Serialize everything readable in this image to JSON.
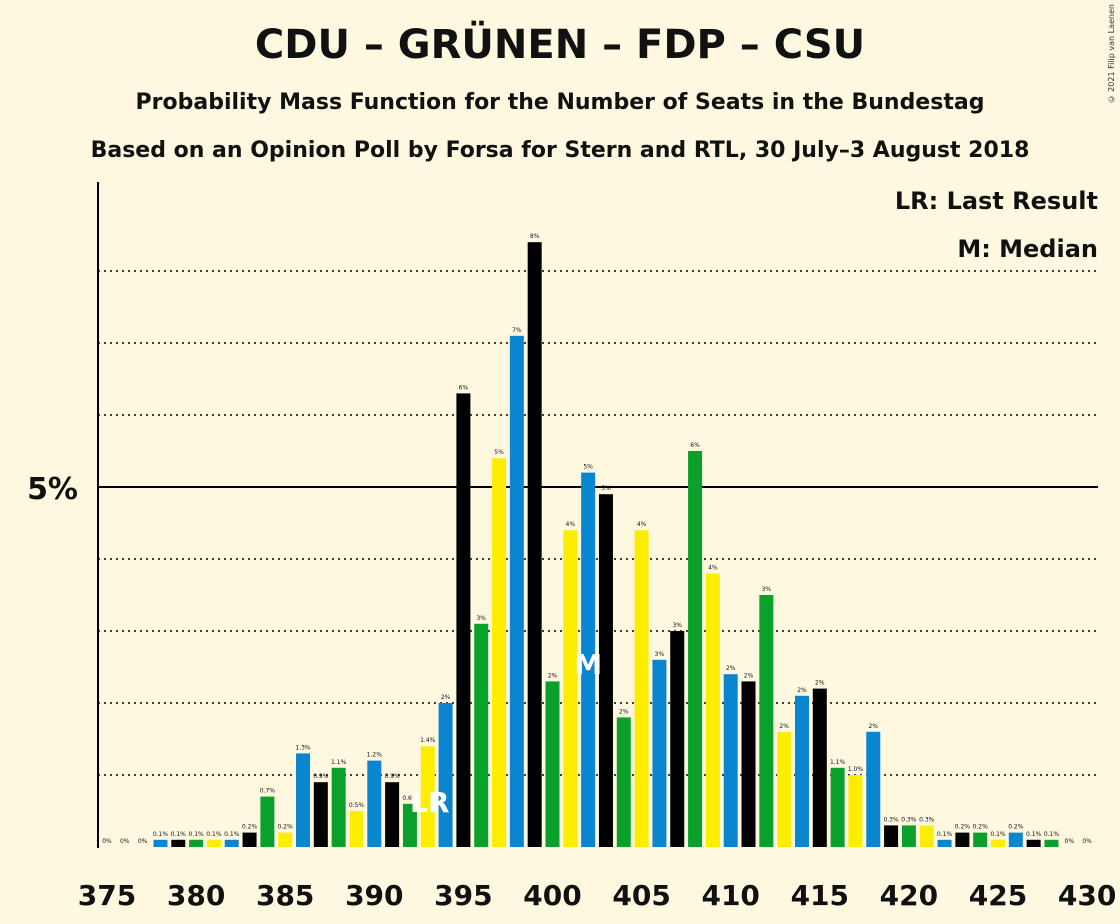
{
  "title": "CDU – GRÜNEN – FDP – CSU",
  "subtitle": "Probability Mass Function for the Number of Seats in the Bundestag",
  "subtitle2": "Based on an Opinion Poll by Forsa for Stern and RTL, 30 July–3 August 2018",
  "copyright": "© 2021 Filip van Laenen",
  "legend": {
    "lr": "LR: Last Result",
    "m": "M: Median"
  },
  "chart_data": {
    "type": "bar",
    "x": [
      375,
      376,
      377,
      378,
      379,
      380,
      381,
      382,
      383,
      384,
      385,
      386,
      387,
      388,
      389,
      390,
      391,
      392,
      393,
      394,
      395,
      396,
      397,
      398,
      399,
      400,
      401,
      402,
      403,
      404,
      405,
      406,
      407,
      408,
      409,
      410,
      411,
      412,
      413,
      414,
      415,
      416,
      417,
      418,
      419,
      420,
      421,
      422,
      423,
      424,
      425,
      426,
      427,
      428,
      429,
      430
    ],
    "values": [
      0.0,
      0.0,
      0.0,
      0.1,
      0.1,
      0.1,
      0.1,
      0.1,
      0.2,
      0.7,
      0.2,
      1.3,
      0.9,
      1.1,
      0.5,
      1.2,
      0.9,
      0.6,
      1.4,
      2.0,
      6.3,
      3.1,
      5.4,
      7.1,
      8.4,
      2.3,
      4.4,
      5.2,
      4.9,
      1.8,
      4.4,
      2.6,
      3.0,
      5.5,
      3.8,
      2.4,
      2.3,
      3.5,
      1.6,
      2.1,
      2.2,
      1.1,
      1.0,
      1.6,
      0.3,
      0.3,
      0.3,
      0.1,
      0.2,
      0.2,
      0.1,
      0.2,
      0.1,
      0.1,
      0.0,
      0.0
    ],
    "labels": [
      "0%",
      "0%",
      "0%",
      "0.1%",
      "0.1%",
      "0.1%",
      "0.1%",
      "0.1%",
      "0.2%",
      "0.7%",
      "0.2%",
      "1.3%",
      "0.9%",
      "1.1%",
      "0.5%",
      "1.2%",
      "0.9%",
      "0.6%",
      "1.4%",
      "2%",
      "6%",
      "3%",
      "5%",
      "7%",
      "8%",
      "2%",
      "4%",
      "5%",
      "5%",
      "2%",
      "4%",
      "3%",
      "3%",
      "6%",
      "4%",
      "2%",
      "2%",
      "3%",
      "2%",
      "2%",
      "2%",
      "1.1%",
      "1.0%",
      "2%",
      "0.3%",
      "0.3%",
      "0.3%",
      "0.1%",
      "0.2%",
      "0.2%",
      "0.1%",
      "0.2%",
      "0.1%",
      "0.1%",
      "0%",
      "0%"
    ],
    "colors": {
      "black": "#000000",
      "green": "#0AA02C",
      "yellow": "#FFED00",
      "blue": "#0A86D1"
    },
    "color_cycle": [
      "black",
      "green",
      "yellow",
      "blue"
    ],
    "last_result_seat": 393,
    "median_seat": 402,
    "xticks": [
      375,
      380,
      385,
      390,
      395,
      400,
      405,
      410,
      415,
      420,
      425,
      430
    ],
    "ytick_label": "5%",
    "ylim": [
      0,
      9
    ],
    "gridlines": [
      1,
      2,
      3,
      4,
      6,
      7,
      8
    ],
    "solid_gridline": 5,
    "lr_marker": "LR",
    "median_marker": "M"
  }
}
